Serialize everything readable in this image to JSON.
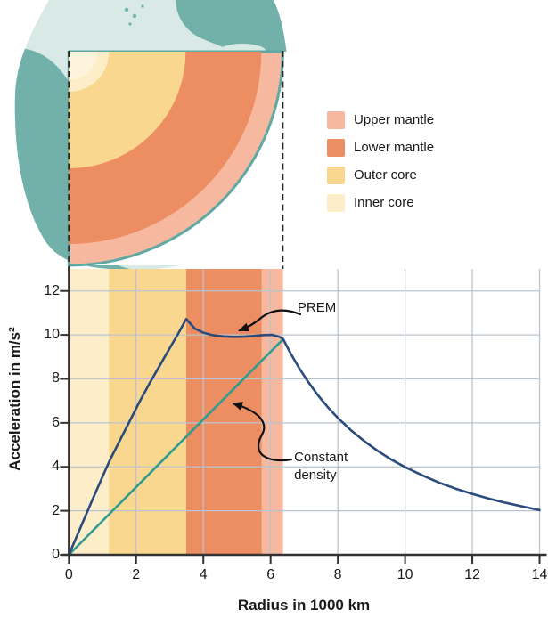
{
  "figure": {
    "globe": {
      "ocean_color": "#D9E9E6",
      "land_color": "#72B1AA",
      "rim_color": "#5FA8A3"
    },
    "cross_section": {
      "surface_color": "#5FA8A3",
      "inner_core_highlight_color": "#FDF4DE",
      "layers": [
        {
          "name": "Inner core",
          "outer_radius_1000km": 1.19,
          "color": "#FDEDC8"
        },
        {
          "name": "Outer core",
          "outer_radius_1000km": 3.49,
          "color": "#FAD78E"
        },
        {
          "name": "Lower mantle",
          "outer_radius_1000km": 5.74,
          "color": "#EC8D62"
        },
        {
          "name": "Upper mantle",
          "outer_radius_1000km": 6.37,
          "color": "#F6B9A0"
        }
      ]
    }
  },
  "legend": {
    "items": [
      {
        "label": "Upper mantle",
        "color": "#F6B9A0"
      },
      {
        "label": "Lower mantle",
        "color": "#EC8D62"
      },
      {
        "label": "Outer core",
        "color": "#FAD78E"
      },
      {
        "label": "Inner core",
        "color": "#FDEDC8"
      }
    ]
  },
  "chart_data": {
    "type": "line",
    "title": "",
    "xlabel": "Radius in 1000 km",
    "ylabel": "Acceleration in m/s²",
    "xlim": [
      0,
      14
    ],
    "ylim": [
      0,
      13
    ],
    "xticks": [
      0,
      2,
      4,
      6,
      8,
      10,
      12,
      14
    ],
    "yticks": [
      0,
      2,
      4,
      6,
      8,
      10,
      12
    ],
    "grid": true,
    "grid_color": "#B9C4CF",
    "axis_color": "#333333",
    "legend_position": "none",
    "bands": [
      {
        "name": "Inner core",
        "from": 0,
        "to": 1.19,
        "color": "#FDEDC8"
      },
      {
        "name": "Outer core",
        "from": 1.19,
        "to": 3.49,
        "color": "#FAD78E"
      },
      {
        "name": "Lower mantle",
        "from": 3.49,
        "to": 5.74,
        "color": "#EC8D62"
      },
      {
        "name": "Upper mantle",
        "from": 5.74,
        "to": 6.37,
        "color": "#F6B9A0"
      }
    ],
    "series": [
      {
        "name": "PREM",
        "color": "#2B4B7C",
        "points": [
          [
            0,
            0
          ],
          [
            0.35,
            1.25
          ],
          [
            0.7,
            2.5
          ],
          [
            1.0,
            3.55
          ],
          [
            1.22,
            4.3
          ],
          [
            1.5,
            5.15
          ],
          [
            1.8,
            6.05
          ],
          [
            2.1,
            6.95
          ],
          [
            2.4,
            7.8
          ],
          [
            2.7,
            8.6
          ],
          [
            3.0,
            9.4
          ],
          [
            3.25,
            10.05
          ],
          [
            3.49,
            10.72
          ],
          [
            3.75,
            10.28
          ],
          [
            4.0,
            10.1
          ],
          [
            4.3,
            9.98
          ],
          [
            4.6,
            9.93
          ],
          [
            4.9,
            9.91
          ],
          [
            5.2,
            9.92
          ],
          [
            5.5,
            9.95
          ],
          [
            5.8,
            9.99
          ],
          [
            6.05,
            10.0
          ],
          [
            6.25,
            9.92
          ],
          [
            6.37,
            9.82
          ],
          [
            6.6,
            9.15
          ],
          [
            6.85,
            8.49
          ],
          [
            7.1,
            7.9
          ],
          [
            7.4,
            7.27
          ],
          [
            7.7,
            6.72
          ],
          [
            8.0,
            6.23
          ],
          [
            8.4,
            5.65
          ],
          [
            8.8,
            5.15
          ],
          [
            9.2,
            4.71
          ],
          [
            9.6,
            4.32
          ],
          [
            10.0,
            3.99
          ],
          [
            10.5,
            3.62
          ],
          [
            11.0,
            3.29
          ],
          [
            11.5,
            3.01
          ],
          [
            12.0,
            2.77
          ],
          [
            12.5,
            2.55
          ],
          [
            13.0,
            2.36
          ],
          [
            13.5,
            2.19
          ],
          [
            14.0,
            2.03
          ]
        ]
      },
      {
        "name": "Constant density",
        "color": "#2E9C8F",
        "points": [
          [
            0,
            0
          ],
          [
            6.37,
            9.8
          ]
        ]
      }
    ],
    "annotations": [
      {
        "label": "PREM",
        "text_x": 6.8,
        "text_y": 11.62,
        "tip_x": 5.03,
        "tip_y": 10.2
      },
      {
        "label": "Constant density",
        "text_x": 6.7,
        "text_y": 4.82,
        "tip_x": 4.84,
        "tip_y": 6.9
      }
    ]
  }
}
